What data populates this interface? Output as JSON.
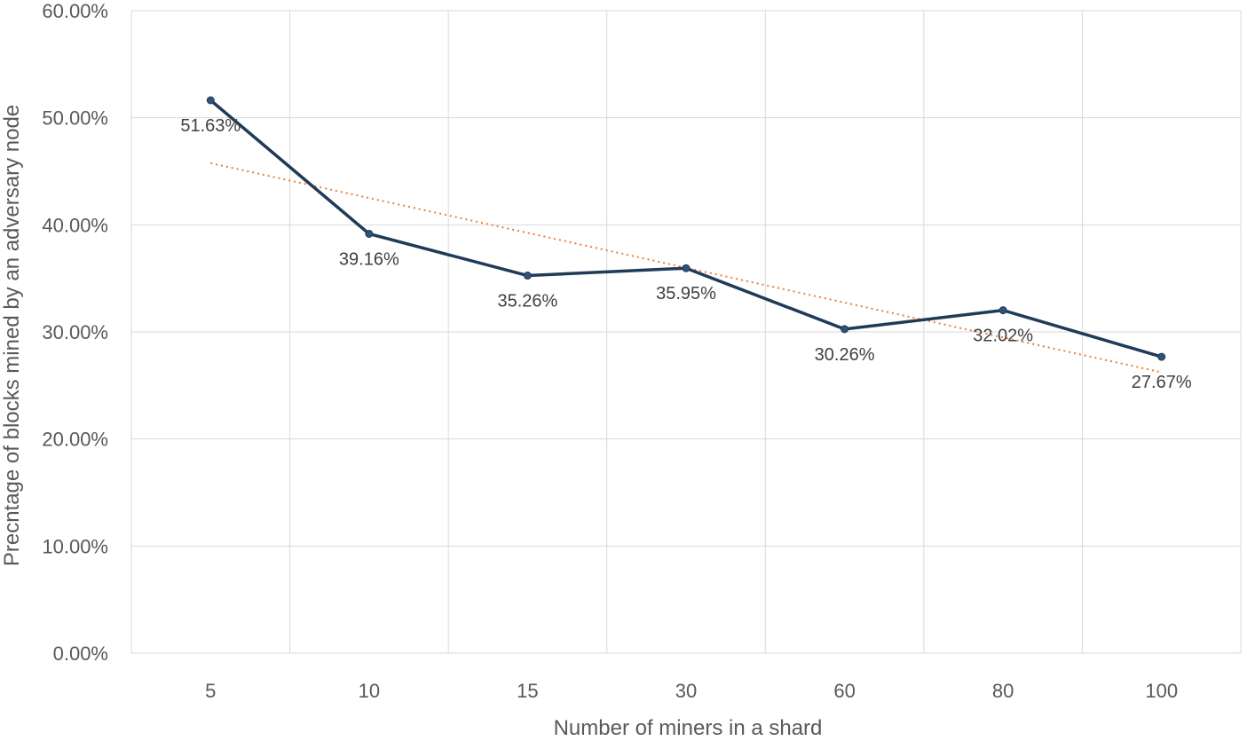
{
  "chart_data": {
    "type": "line",
    "categories": [
      "5",
      "10",
      "15",
      "30",
      "60",
      "80",
      "100"
    ],
    "series": [
      {
        "values": [
          51.63,
          39.16,
          35.26,
          35.95,
          30.26,
          32.02,
          27.67
        ],
        "data_labels": [
          "51.63%",
          "39.16%",
          "35.26%",
          "35.95%",
          "30.26%",
          "32.02%",
          "27.67%"
        ],
        "color": "#1f3b57",
        "marker_color": "#2e5479"
      }
    ],
    "trendline": {
      "type": "linear",
      "color": "#ed7d31",
      "style": "dotted"
    },
    "ylim": [
      0,
      60
    ],
    "yticks": [
      0,
      10,
      20,
      30,
      40,
      50,
      60
    ],
    "ytick_labels": [
      "0.00%",
      "10.00%",
      "20.00%",
      "30.00%",
      "40.00%",
      "50.00%",
      "60.00%"
    ],
    "xlabel": "Number of miners in a shard",
    "ylabel": "Precntage of  blocks mined by an adversary node",
    "grid": true,
    "legend": "none"
  }
}
